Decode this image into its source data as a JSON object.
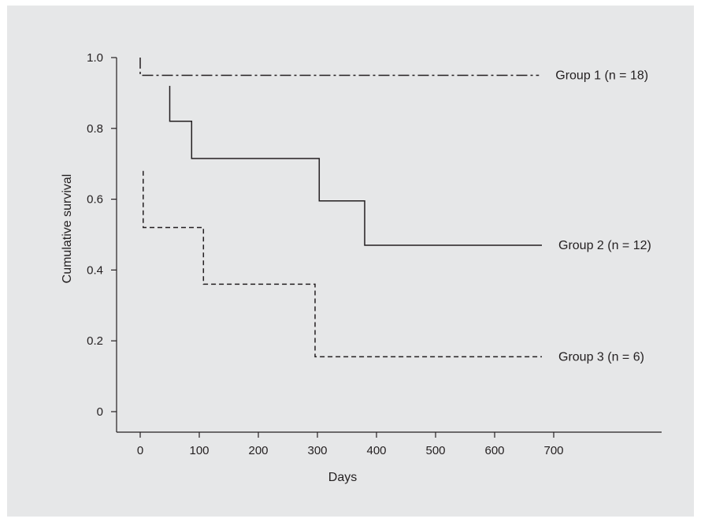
{
  "chart_data": {
    "type": "line",
    "title": "",
    "xlabel": "Days",
    "ylabel": "Cumulative survival",
    "xlim": [
      0,
      700
    ],
    "ylim": [
      0,
      1.0
    ],
    "x_ticks": [
      0,
      100,
      200,
      300,
      400,
      500,
      600,
      700
    ],
    "x_tick_labels": [
      "0",
      "100",
      "200",
      "300",
      "400",
      "500",
      "600",
      "700"
    ],
    "y_ticks": [
      0,
      0.2,
      0.4,
      0.6,
      0.8,
      1.0
    ],
    "y_tick_labels": [
      "0",
      "0.2",
      "0.4",
      "0.6",
      "0.8",
      "1.0"
    ],
    "grid": false,
    "legend": "inline labels at right end of each curve",
    "series": [
      {
        "name": "Group 1 (n = 18)",
        "line_style": "dash-dot",
        "color": "#231f20",
        "x": [
          0,
          0,
          675
        ],
        "y": [
          1.0,
          0.95,
          0.95
        ]
      },
      {
        "name": "Group 2 (n = 12)",
        "line_style": "solid",
        "color": "#231f20",
        "x": [
          50,
          50,
          87,
          87,
          303,
          303,
          380,
          380,
          680
        ],
        "y": [
          0.92,
          0.82,
          0.82,
          0.715,
          0.715,
          0.595,
          0.595,
          0.47,
          0.47
        ]
      },
      {
        "name": "Group 3 (n = 6)",
        "line_style": "dashed",
        "color": "#231f20",
        "x": [
          5,
          5,
          107,
          107,
          296,
          296,
          680
        ],
        "y": [
          0.68,
          0.52,
          0.52,
          0.36,
          0.36,
          0.155,
          0.155
        ]
      }
    ]
  }
}
